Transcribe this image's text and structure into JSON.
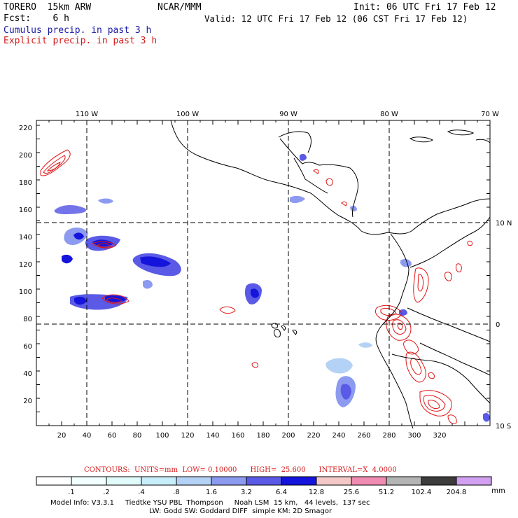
{
  "header": {
    "model": "TORERO  15km ARW",
    "org": "NCAR/MMM",
    "init": "Init: 06 UTC Fri 17 Feb 12",
    "fcst": "Fcst:    6 h",
    "valid": "Valid: 12 UTC Fri 17 Feb 12 (06 CST Fri 17 Feb 12)",
    "cumulus": "Cumulus precip. in past 3 h",
    "explicit": "Explicit precip. in past 3 h"
  },
  "map": {
    "lon_labels": [
      "110 W",
      "100 W",
      "90 W",
      "80 W",
      "70 W"
    ],
    "lat_labels": [
      "10 N",
      "0",
      "10 S"
    ],
    "x_ticks": [
      "20",
      "40",
      "60",
      "80",
      "100",
      "120",
      "140",
      "160",
      "180",
      "200",
      "220",
      "240",
      "260",
      "280",
      "300",
      "320"
    ],
    "y_ticks": [
      "20",
      "40",
      "60",
      "80",
      "100",
      "120",
      "140",
      "160",
      "180",
      "200",
      "220"
    ],
    "colors": {
      "cumulus": "#2828e0",
      "explicit": "#e01414",
      "coast": "#000000",
      "grid": "#000000"
    }
  },
  "legend": {
    "contour_info": "CONTOURS:  UNITS=mm  LOW= 0.10000      HIGH=  25.600      INTERVAL=X  4.0000",
    "labels": [
      ".1",
      ".2",
      ".4",
      ".8",
      "1.6",
      "3.2",
      "6.4",
      "12.8",
      "25.6",
      "51.2",
      "102.4",
      "204.8"
    ],
    "unit": "mm",
    "colors": [
      "#ffffff",
      "#f2ffff",
      "#e1fafa",
      "#c8eefa",
      "#b4d2f5",
      "#8c9bf0",
      "#5a5ae6",
      "#1414dc",
      "#f5c8c8",
      "#f08cb4",
      "#b4b4b4",
      "#3c3c3c",
      "#d2a0f0"
    ]
  },
  "footer": {
    "line1": "Model Info: V3.3.1     Tiedtke YSU PBL  Thompson     Noah LSM  15 km,   44 levels,  137 sec",
    "line2": "LW: Godd SW: Goddard DIFF  simple KM: 2D Smagor"
  }
}
